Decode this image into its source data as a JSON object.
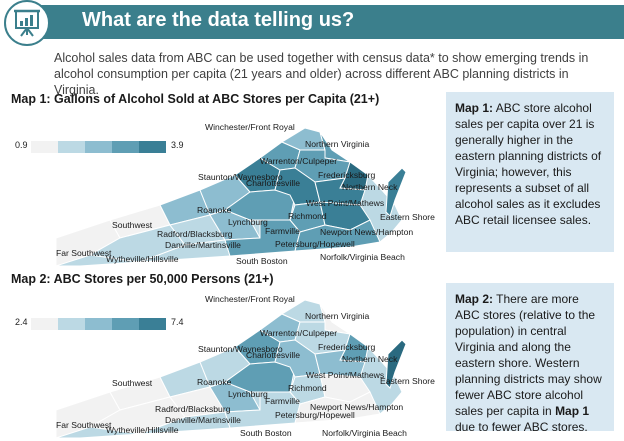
{
  "header": {
    "title": "What are the data telling us?",
    "icon": "presentation-board-icon"
  },
  "intro": {
    "text": "Alcohol sales data from ABC can be used together with census data* to show emerging trends in alcohol consumption per capita (21 years and older) across different ABC planning districts in Virginia."
  },
  "map1": {
    "title": "Map 1: Gallons of Alcohol Sold at ABC Stores per Capita (21+)",
    "legend_min": "0.9",
    "legend_max": "3.9",
    "legend_colors": [
      "#f2f2f2",
      "#bcd9e4",
      "#8dbdd0",
      "#5f9eb4",
      "#3a7f96",
      "#2a6a80"
    ],
    "labels": {
      "winchester": "Winchester/Front Royal",
      "northern_virginia": "Northern Virginia",
      "warrenton": "Warrenton/Culpeper",
      "staunton": "Staunton/Waynesboro",
      "charlottesville": "Charlottesville",
      "fredericksburg": "Fredericksburg",
      "northern_neck": "Northern Neck",
      "west_point": "West Point/Mathews",
      "roanoke": "Roanoke",
      "lynchburg": "Lynchburg",
      "richmond": "Richmond",
      "eastern_shore": "Eastern Shore",
      "southwest": "Southwest",
      "radford": "Radford/Blacksburg",
      "farmville": "Farmville",
      "newport_news": "Newport News/Hampton",
      "danville": "Danville/Martinsville",
      "petersburg": "Petersburg/Hopewell",
      "far_southwest": "Far Southwest",
      "wytheville": "Wytheville/Hillsville",
      "south_boston": "South Boston",
      "norfolk": "Norfolk/Virginia Beach"
    },
    "note_bold": "Map 1:",
    "note_text": " ABC store alcohol sales per capita over 21 is generally higher in the eastern planning districts of Virginia; however, this represents a subset of all alcohol sales as it excludes ABC retail licensee sales."
  },
  "map2": {
    "title": "Map 2: ABC Stores per 50,000 Persons (21+)",
    "legend_min": "2.4",
    "legend_max": "7.4",
    "legend_colors": [
      "#f2f2f2",
      "#bcd9e4",
      "#8dbdd0",
      "#5f9eb4",
      "#3a7f96",
      "#2a6a80"
    ],
    "labels": {
      "winchester": "Winchester/Front Royal",
      "northern_virginia": "Northern Virginia",
      "warrenton": "Warrenton/Culpeper",
      "staunton": "Staunton/Waynesboro",
      "charlottesville": "Charlottesville",
      "fredericksburg": "Fredericksburg",
      "northern_neck": "Northern Neck",
      "west_point": "West Point/Mathews",
      "roanoke": "Roanoke",
      "lynchburg": "Lynchburg",
      "richmond": "Richmond",
      "eastern_shore": "Eastern Shore",
      "southwest": "Southwest",
      "radford": "Radford/Blacksburg",
      "farmville": "Farmville",
      "newport_news": "Newport News/Hampton",
      "danville": "Danville/Martinsville",
      "petersburg": "Petersburg/Hopewell",
      "far_southwest": "Far Southwest",
      "wytheville": "Wytheville/Hillsville",
      "south_boston": "South Boston",
      "norfolk": "Norfolk/Virginia Beach"
    },
    "note_bold_1": "Map 2:",
    "note_text_1": " There are more ABC stores (relative to the population) in central Virginia and along the eastern shore. Western planning districts may show fewer ABC store alcohol sales per capita in ",
    "note_bold_2": "Map 1",
    "note_text_2": " due to fewer ABC stores."
  }
}
